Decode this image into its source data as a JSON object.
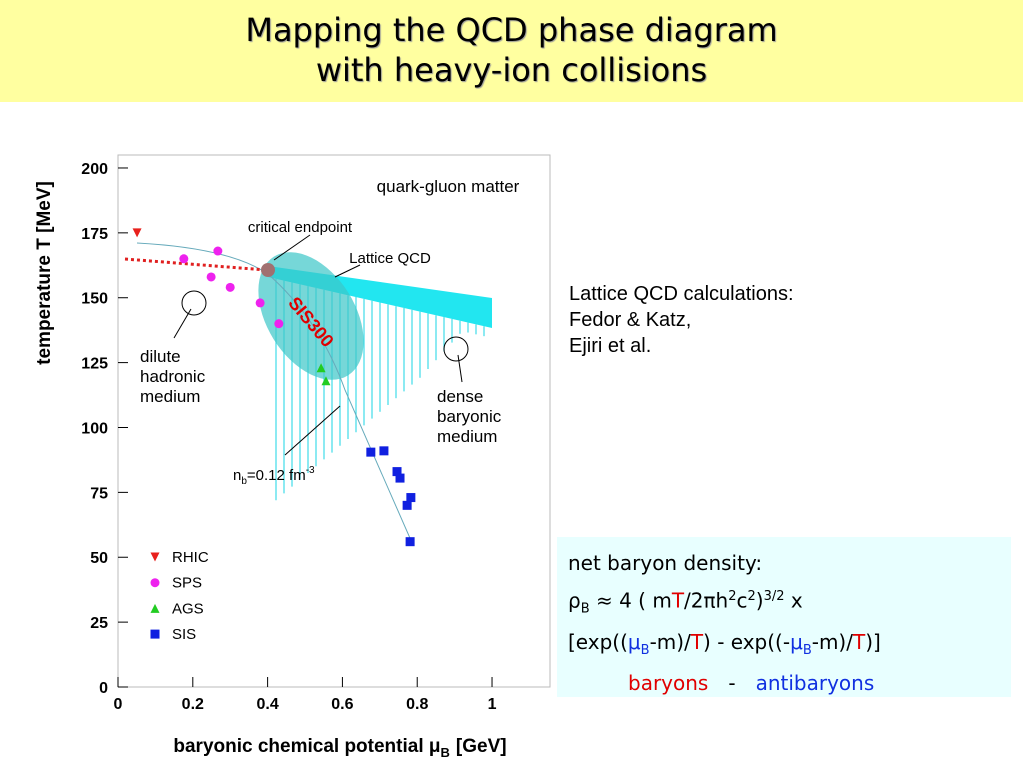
{
  "header": {
    "title_lines": [
      "Mapping the QCD  phase diagram",
      "with heavy-ion collisions"
    ]
  },
  "chart_data": {
    "type": "scatter",
    "xlabel": {
      "text": "baryonic chemical potential μ",
      "sub": "B",
      "unit": "[GeV]"
    },
    "ylabel": "temperature T [MeV]",
    "xlim": [
      0,
      1.155
    ],
    "ylim": [
      0,
      205
    ],
    "xticks": [
      0,
      0.2,
      0.4,
      0.6,
      0.8,
      1
    ],
    "yticks": [
      0,
      25,
      50,
      75,
      100,
      125,
      150,
      175,
      200
    ],
    "legend": "lower left",
    "series": [
      {
        "name": "RHIC",
        "color": "#e8201c",
        "marker": "triangle-down",
        "x": [
          0.051
        ],
        "values": [
          175
        ]
      },
      {
        "name": "SPS",
        "color": "#ee22ee",
        "marker": "circle",
        "x": [
          0.176,
          0.249,
          0.267,
          0.3,
          0.38,
          0.43
        ],
        "values": [
          165,
          158,
          168,
          154,
          148,
          140
        ]
      },
      {
        "name": "AGS",
        "color": "#22cc22",
        "marker": "triangle",
        "x": [
          0.543,
          0.556
        ],
        "values": [
          123,
          118
        ]
      },
      {
        "name": "SIS",
        "color": "#1020e0",
        "marker": "square",
        "x": [
          0.676,
          0.711,
          0.746,
          0.754,
          0.773,
          0.783,
          0.781
        ],
        "values": [
          90.5,
          91,
          83,
          80.5,
          70,
          73,
          56
        ]
      }
    ],
    "annotations": {
      "qgm": "quark-gluon matter",
      "cep": "critical endpoint",
      "lqcd": "Lattice QCD",
      "sis300": "SIS300",
      "dilute": [
        "dilute",
        "hadronic",
        "medium"
      ],
      "dense": [
        "dense",
        "baryonic",
        "medium"
      ],
      "nb": {
        "text": "n",
        "sub": "b",
        "mid": "=0.12 fm",
        "sup": "-3"
      }
    }
  },
  "side_note": [
    "Lattice QCD calculations:",
    "Fedor & Katz,",
    "Ejiri et al."
  ],
  "formula_box": {
    "heading": "net baryon density:",
    "lines": [
      [
        {
          "t": "ρ"
        },
        {
          "t": "B",
          "s": "sub"
        },
        {
          "t": " ≈ 4 ( m"
        },
        {
          "t": "T",
          "c": "#e00000"
        },
        {
          "t": "/2πh"
        },
        {
          "t": "2",
          "s": "sup"
        },
        {
          "t": "c"
        },
        {
          "t": "2",
          "s": "sup"
        },
        {
          "t": ")"
        },
        {
          "t": "3/2",
          "s": "sup"
        },
        {
          "t": "  x"
        }
      ],
      [
        {
          "t": "[exp(("
        },
        {
          "t": "μ",
          "c": "#1030e0"
        },
        {
          "t": "B",
          "s": "sub",
          "c": "#1030e0"
        },
        {
          "t": "-m)/"
        },
        {
          "t": "T",
          "c": "#e00000"
        },
        {
          "t": ") - exp((-"
        },
        {
          "t": "μ",
          "c": "#1030e0"
        },
        {
          "t": "B",
          "s": "sub",
          "c": "#1030e0"
        },
        {
          "t": "-m)/"
        },
        {
          "t": "T",
          "c": "#e00000"
        },
        {
          "t": ")]"
        }
      ],
      [
        {
          "t": "baryons",
          "c": "#e00000"
        },
        {
          "t": "-"
        },
        {
          "t": "antibaryons",
          "c": "#1030e0"
        }
      ]
    ]
  }
}
